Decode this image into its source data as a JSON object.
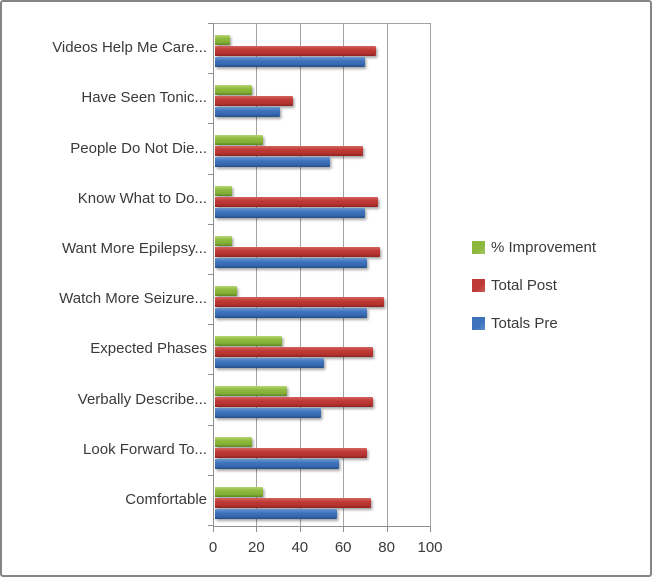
{
  "chart": {
    "background": "#ffffff",
    "frame_border_color": "#858585",
    "axis_color": "#8f8f8f",
    "gridline_color": "#a3a3a3",
    "text_color": "#3a3a3a"
  },
  "chart_data": {
    "type": "bar",
    "orientation": "horizontal",
    "title": "",
    "xlabel": "",
    "ylabel": "",
    "xlim": [
      0,
      100
    ],
    "xticks": [
      "0",
      "20",
      "40",
      "60",
      "80",
      "100"
    ],
    "grid": true,
    "legend_position": "right",
    "categories": [
      "Videos Help Me Care...",
      "Have Seen Tonic...",
      "People Do Not Die...",
      "Know What to Do...",
      "Want More Epilepsy...",
      "Watch More Seizure...",
      "Expected Phases",
      "Verbally Describe...",
      "Look Forward To...",
      "Comfortable"
    ],
    "series": [
      {
        "name": "% Improvement",
        "color": "#8db83e",
        "css_class": "s-green",
        "values": [
          7,
          17,
          22,
          8,
          8,
          10,
          31,
          33,
          17,
          22
        ]
      },
      {
        "name": "Total Post",
        "color": "#be3a36",
        "css_class": "s-red",
        "values": [
          74,
          36,
          68,
          75,
          76,
          78,
          73,
          73,
          70,
          72
        ]
      },
      {
        "name": "Totals Pre",
        "color": "#3e73bb",
        "css_class": "s-blue",
        "values": [
          69,
          30,
          53,
          69,
          70,
          70,
          50,
          49,
          57,
          56
        ]
      }
    ]
  }
}
